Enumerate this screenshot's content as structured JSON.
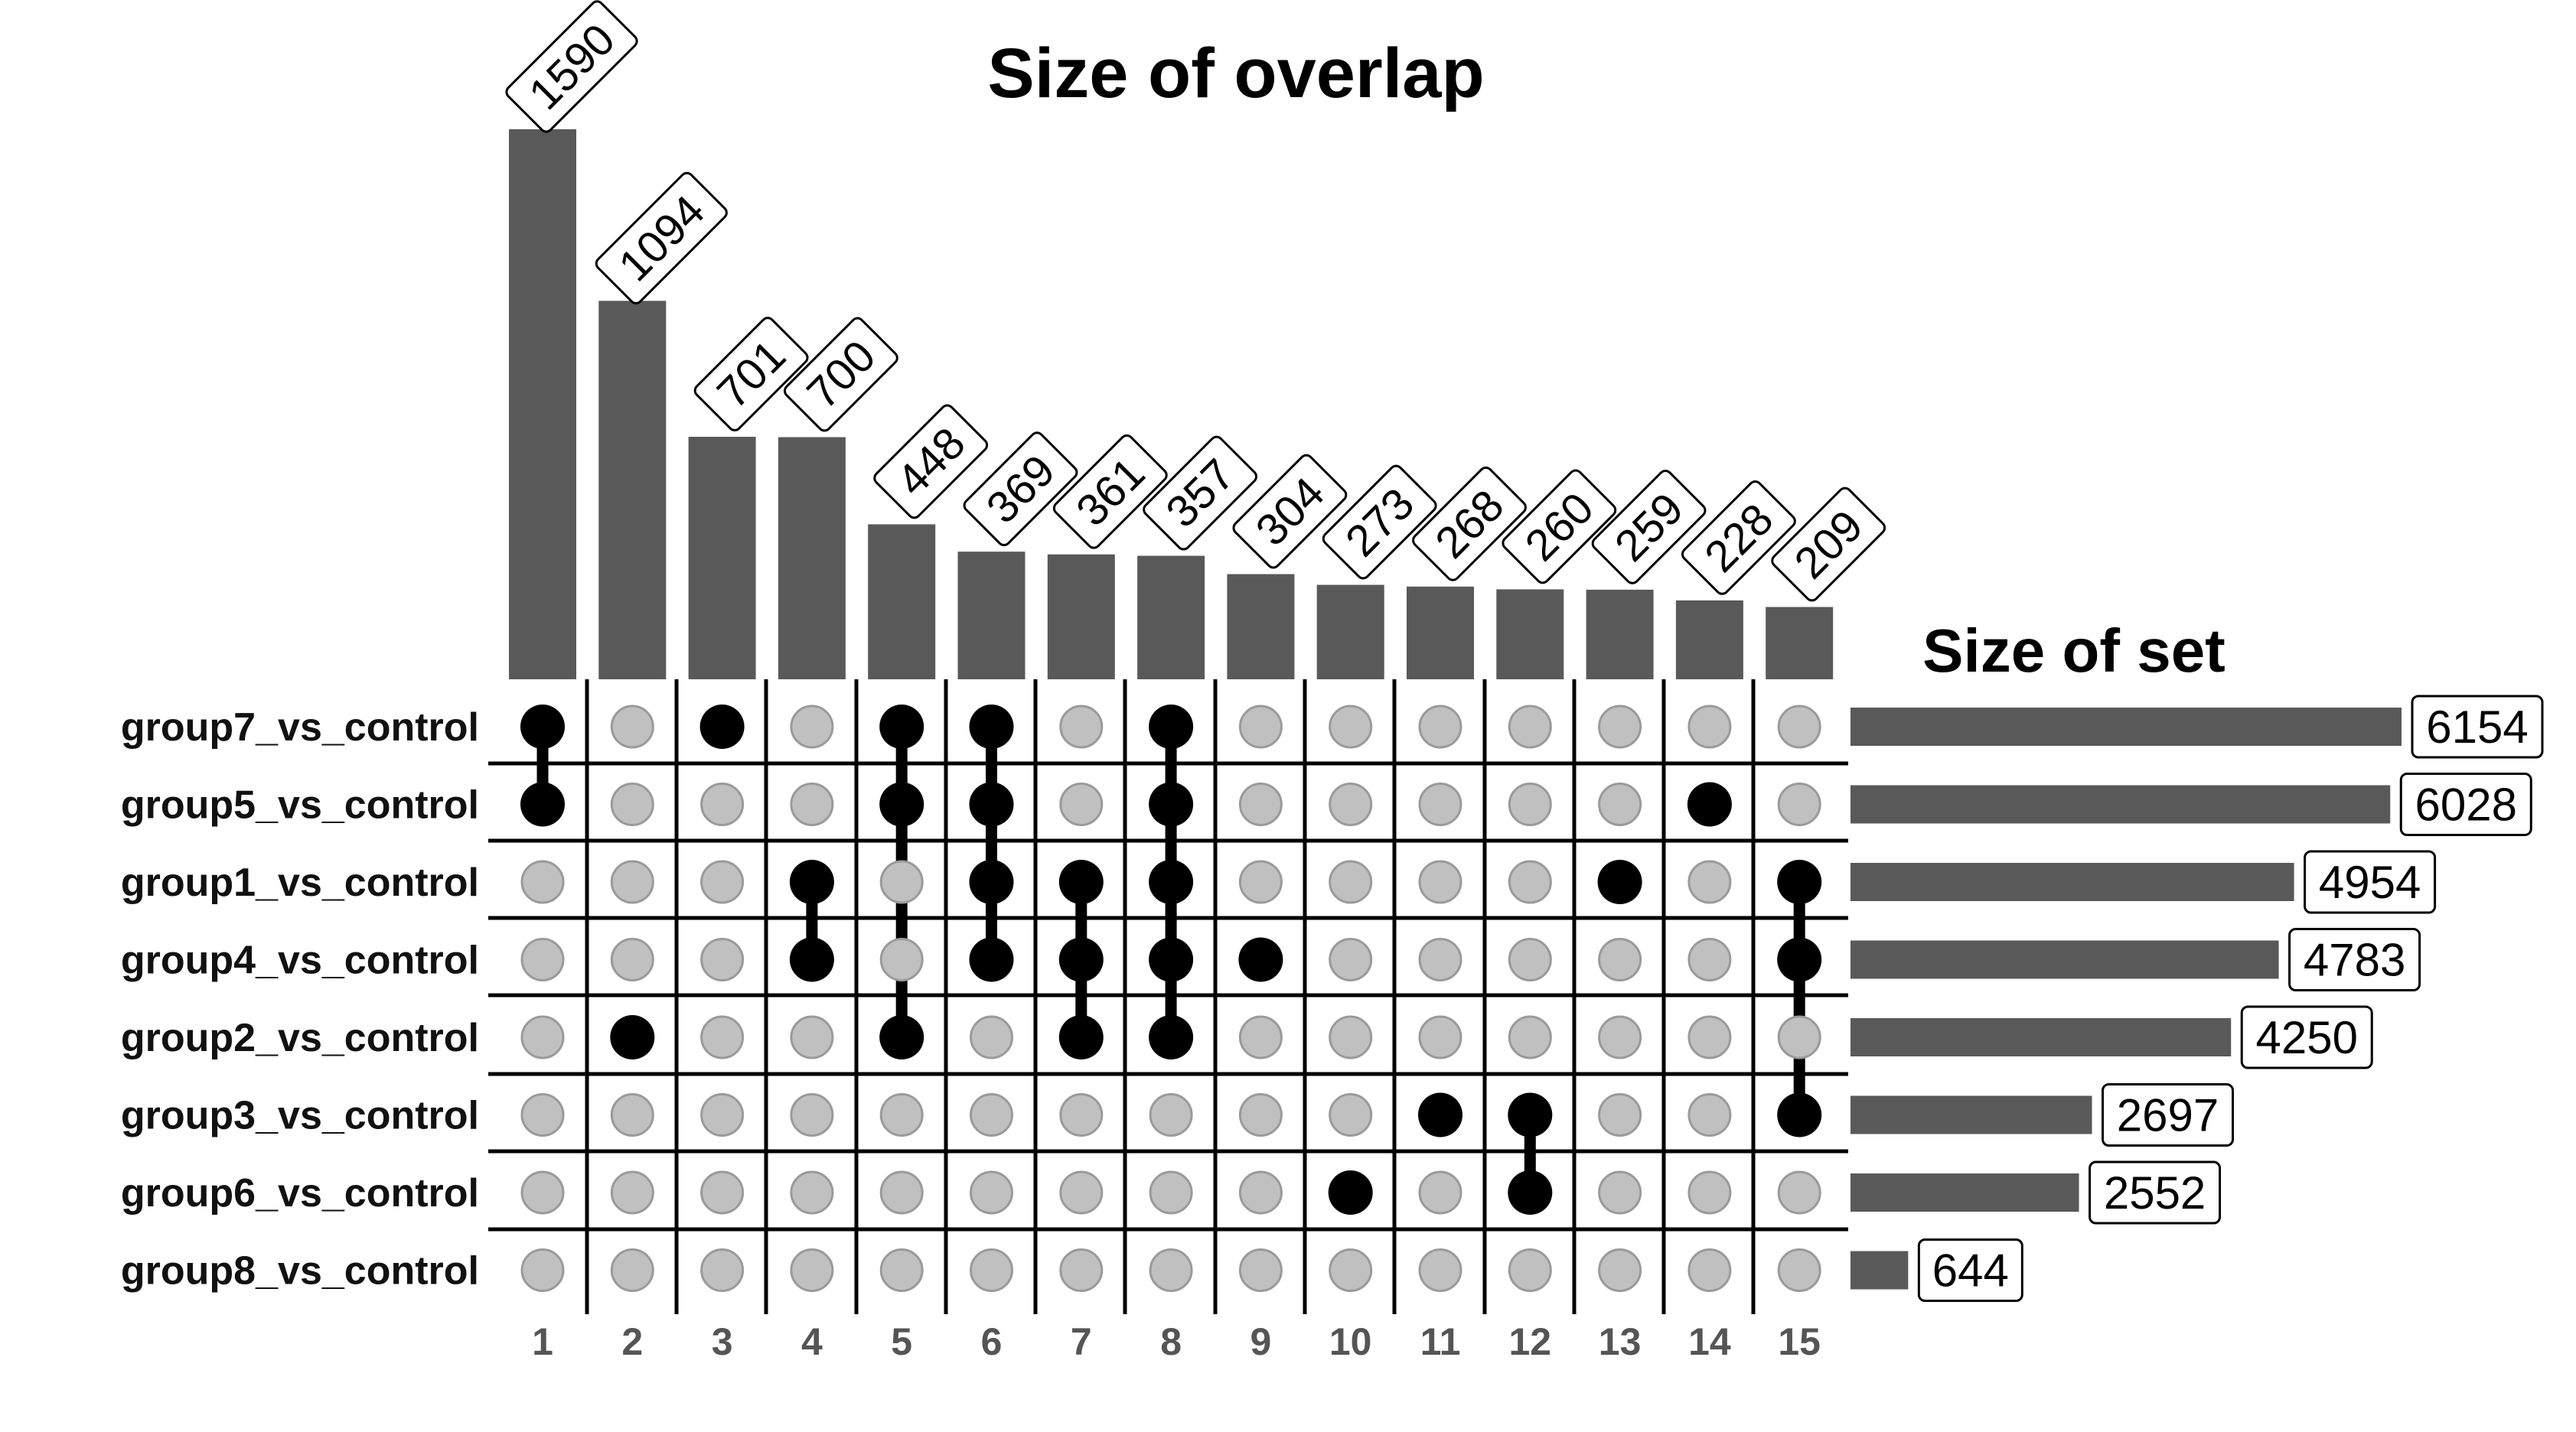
{
  "chart_data": {
    "type": "upset",
    "title": "Size of overlap",
    "set_size_title": "Size of set",
    "colors": {
      "bar": "#595959",
      "dot_active": "#000000",
      "dot_inactive": "#c0c0c0",
      "dot_inactive_stroke": "#9a9a9a",
      "grid": "#000000",
      "index_label": "#555555"
    },
    "intersection_labels": [
      "1",
      "2",
      "3",
      "4",
      "5",
      "6",
      "7",
      "8",
      "9",
      "10",
      "11",
      "12",
      "13",
      "14",
      "15"
    ],
    "sets": [
      {
        "name": "group7_vs_control",
        "size": 6154
      },
      {
        "name": "group5_vs_control",
        "size": 6028
      },
      {
        "name": "group1_vs_control",
        "size": 4954
      },
      {
        "name": "group4_vs_control",
        "size": 4783
      },
      {
        "name": "group2_vs_control",
        "size": 4250
      },
      {
        "name": "group3_vs_control",
        "size": 2697
      },
      {
        "name": "group6_vs_control",
        "size": 2552
      },
      {
        "name": "group8_vs_control",
        "size": 644
      }
    ],
    "intersections": [
      {
        "size": 1590,
        "sets": [
          0,
          1
        ]
      },
      {
        "size": 1094,
        "sets": [
          4
        ]
      },
      {
        "size": 701,
        "sets": [
          0
        ]
      },
      {
        "size": 700,
        "sets": [
          2,
          3
        ]
      },
      {
        "size": 448,
        "sets": [
          0,
          1,
          4
        ]
      },
      {
        "size": 369,
        "sets": [
          0,
          1,
          2,
          3
        ]
      },
      {
        "size": 361,
        "sets": [
          2,
          3,
          4
        ]
      },
      {
        "size": 357,
        "sets": [
          0,
          1,
          2,
          3,
          4
        ]
      },
      {
        "size": 304,
        "sets": [
          3
        ]
      },
      {
        "size": 273,
        "sets": [
          6
        ]
      },
      {
        "size": 268,
        "sets": [
          5
        ]
      },
      {
        "size": 260,
        "sets": [
          5,
          6
        ]
      },
      {
        "size": 259,
        "sets": [
          2
        ]
      },
      {
        "size": 228,
        "sets": [
          1
        ]
      },
      {
        "size": 209,
        "sets": [
          2,
          3,
          5
        ]
      }
    ]
  }
}
